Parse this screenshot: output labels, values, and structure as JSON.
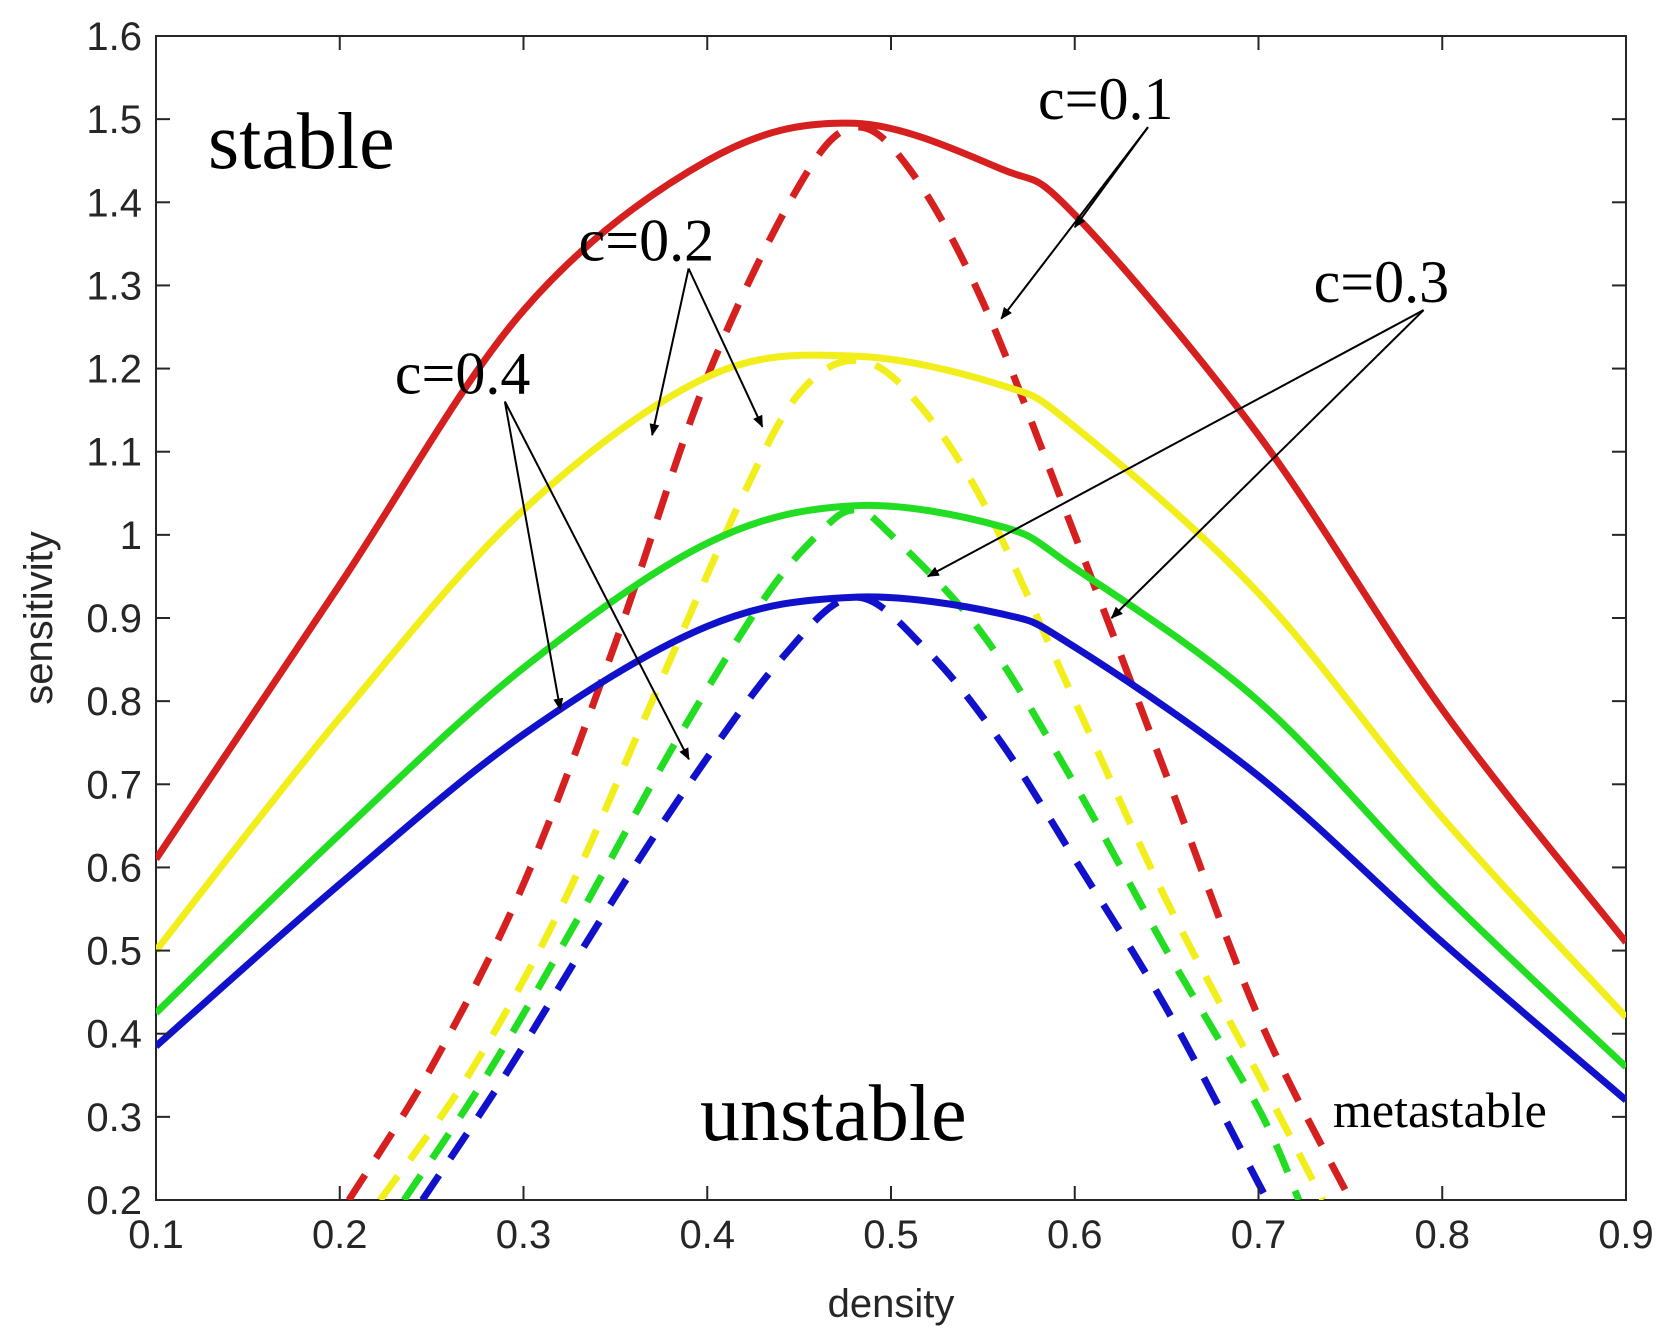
{
  "chart_data": {
    "type": "line",
    "xlabel": "density",
    "ylabel": "sensitivity",
    "xlim": [
      0.1,
      0.9
    ],
    "ylim": [
      0.2,
      1.6
    ],
    "xticks": [
      "0.1",
      "0.2",
      "0.3",
      "0.4",
      "0.5",
      "0.6",
      "0.7",
      "0.8",
      "0.9"
    ],
    "yticks": [
      "0.2",
      "0.3",
      "0.4",
      "0.5",
      "0.6",
      "0.7",
      "0.8",
      "0.9",
      "1",
      "1.1",
      "1.2",
      "1.3",
      "1.4",
      "1.5",
      "1.6"
    ],
    "grid": false,
    "region_labels": {
      "stable": "stable",
      "unstable": "unstable",
      "metastable": "metastable"
    },
    "series": [
      {
        "name": "c=0.1",
        "c": 0.1,
        "color": "#d62020",
        "peak_x": 0.48,
        "peak_y": 1.495,
        "neutral_edge_y": 0.6
      },
      {
        "name": "c=0.2",
        "c": 0.2,
        "color": "#f2ee1c",
        "peak_x": 0.48,
        "peak_y": 1.215,
        "neutral_edge_y": 0.49
      },
      {
        "name": "c=0.3",
        "c": 0.3,
        "color": "#22dd22",
        "peak_x": 0.48,
        "peak_y": 1.035,
        "neutral_edge_y": 0.42
      },
      {
        "name": "c=0.4",
        "c": 0.4,
        "color": "#1111cc",
        "peak_x": 0.48,
        "peak_y": 0.925,
        "neutral_edge_y": 0.38
      }
    ],
    "neutral_curves": [
      {
        "series": "c=0.1",
        "style": "solid",
        "points": [
          [
            0.1,
            0.61
          ],
          [
            0.2,
            0.94
          ],
          [
            0.3,
            1.27
          ],
          [
            0.4,
            1.45
          ],
          [
            0.48,
            1.495
          ],
          [
            0.56,
            1.44
          ],
          [
            0.6,
            1.385
          ],
          [
            0.7,
            1.12
          ],
          [
            0.8,
            0.79
          ],
          [
            0.9,
            0.51
          ]
        ]
      },
      {
        "series": "c=0.2",
        "style": "solid",
        "points": [
          [
            0.1,
            0.5
          ],
          [
            0.2,
            0.78
          ],
          [
            0.3,
            1.03
          ],
          [
            0.4,
            1.19
          ],
          [
            0.48,
            1.215
          ],
          [
            0.56,
            1.18
          ],
          [
            0.6,
            1.13
          ],
          [
            0.7,
            0.93
          ],
          [
            0.8,
            0.66
          ],
          [
            0.9,
            0.42
          ]
        ]
      },
      {
        "series": "c=0.3",
        "style": "solid",
        "points": [
          [
            0.1,
            0.425
          ],
          [
            0.2,
            0.64
          ],
          [
            0.3,
            0.84
          ],
          [
            0.4,
            0.99
          ],
          [
            0.48,
            1.035
          ],
          [
            0.56,
            1.01
          ],
          [
            0.6,
            0.96
          ],
          [
            0.7,
            0.8
          ],
          [
            0.8,
            0.57
          ],
          [
            0.9,
            0.36
          ]
        ]
      },
      {
        "series": "c=0.4",
        "style": "solid",
        "points": [
          [
            0.1,
            0.385
          ],
          [
            0.2,
            0.58
          ],
          [
            0.3,
            0.76
          ],
          [
            0.4,
            0.89
          ],
          [
            0.48,
            0.925
          ],
          [
            0.56,
            0.905
          ],
          [
            0.6,
            0.865
          ],
          [
            0.7,
            0.71
          ],
          [
            0.8,
            0.51
          ],
          [
            0.9,
            0.32
          ]
        ]
      }
    ],
    "spinodal_curves": [
      {
        "series": "c=0.1",
        "style": "dashed",
        "points": [
          [
            0.205,
            0.2
          ],
          [
            0.25,
            0.36
          ],
          [
            0.3,
            0.58
          ],
          [
            0.35,
            0.87
          ],
          [
            0.4,
            1.19
          ],
          [
            0.45,
            1.42
          ],
          [
            0.48,
            1.49
          ],
          [
            0.51,
            1.44
          ],
          [
            0.55,
            1.28
          ],
          [
            0.6,
            1.0
          ],
          [
            0.65,
            0.71
          ],
          [
            0.7,
            0.42
          ],
          [
            0.75,
            0.2
          ]
        ]
      },
      {
        "series": "c=0.2",
        "style": "dashed",
        "points": [
          [
            0.222,
            0.2
          ],
          [
            0.27,
            0.35
          ],
          [
            0.32,
            0.55
          ],
          [
            0.37,
            0.8
          ],
          [
            0.42,
            1.05
          ],
          [
            0.45,
            1.17
          ],
          [
            0.48,
            1.21
          ],
          [
            0.51,
            1.17
          ],
          [
            0.55,
            1.04
          ],
          [
            0.6,
            0.8
          ],
          [
            0.65,
            0.56
          ],
          [
            0.7,
            0.35
          ],
          [
            0.735,
            0.2
          ]
        ]
      },
      {
        "series": "c=0.3",
        "style": "dashed",
        "points": [
          [
            0.235,
            0.2
          ],
          [
            0.28,
            0.35
          ],
          [
            0.33,
            0.54
          ],
          [
            0.38,
            0.74
          ],
          [
            0.43,
            0.92
          ],
          [
            0.46,
            1.0
          ],
          [
            0.48,
            1.03
          ],
          [
            0.5,
            1.0
          ],
          [
            0.55,
            0.88
          ],
          [
            0.6,
            0.7
          ],
          [
            0.65,
            0.5
          ],
          [
            0.7,
            0.31
          ],
          [
            0.722,
            0.2
          ]
        ]
      },
      {
        "series": "c=0.4",
        "style": "dashed",
        "points": [
          [
            0.245,
            0.2
          ],
          [
            0.29,
            0.35
          ],
          [
            0.34,
            0.53
          ],
          [
            0.39,
            0.7
          ],
          [
            0.44,
            0.85
          ],
          [
            0.48,
            0.925
          ],
          [
            0.52,
            0.86
          ],
          [
            0.56,
            0.75
          ],
          [
            0.6,
            0.61
          ],
          [
            0.65,
            0.43
          ],
          [
            0.7,
            0.22
          ],
          [
            0.705,
            0.2
          ]
        ]
      }
    ],
    "annotations": [
      {
        "text": "c=0.1",
        "label_at": [
          0.58,
          1.5
        ],
        "arrows_to": [
          [
            0.6,
            1.37
          ],
          [
            0.56,
            1.26
          ]
        ]
      },
      {
        "text": "c=0.2",
        "label_at": [
          0.33,
          1.33
        ],
        "arrows_to": [
          [
            0.37,
            1.12
          ],
          [
            0.43,
            1.13
          ]
        ]
      },
      {
        "text": "c=0.3",
        "label_at": [
          0.73,
          1.28
        ],
        "arrows_to": [
          [
            0.52,
            0.95
          ],
          [
            0.62,
            0.9
          ]
        ]
      },
      {
        "text": "c=0.4",
        "label_at": [
          0.23,
          1.17
        ],
        "arrows_to": [
          [
            0.32,
            0.79
          ],
          [
            0.39,
            0.73
          ]
        ]
      }
    ]
  }
}
